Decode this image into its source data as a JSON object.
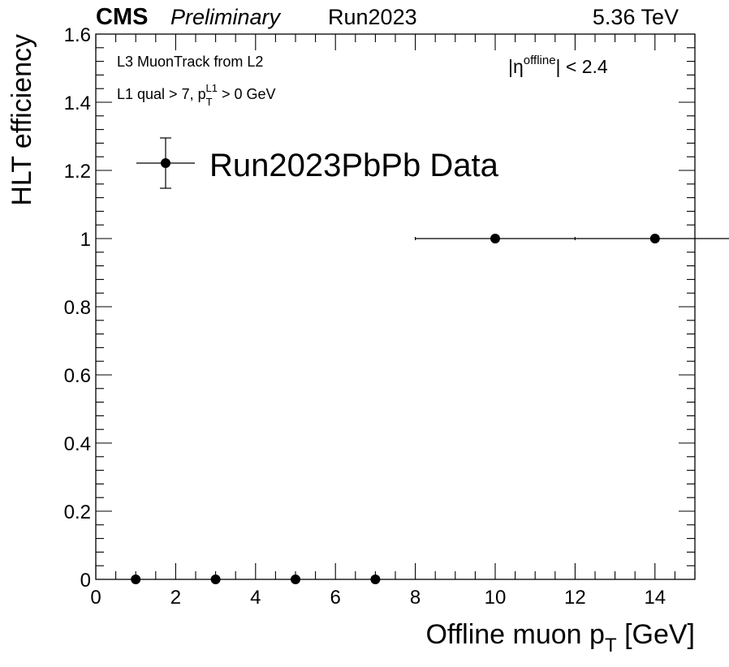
{
  "header": {
    "experiment": "CMS",
    "status": "Preliminary",
    "run": "Run2023",
    "energy": "5.36 TeV"
  },
  "annotations": {
    "line1": "L3 MuonTrack from L2",
    "line2_prefix": "L1 qual > 7, p",
    "line2_sub": "T",
    "line2_sup": "L1",
    "line2_suffix": " > 0 GeV",
    "eta_prefix": "|η",
    "eta_sup": "offline",
    "eta_suffix": "| < 2.4"
  },
  "chart_data": {
    "type": "scatter",
    "title": "",
    "xlabel_main": "Offline muon p",
    "xlabel_sub": "T",
    "xlabel_unit": " [GeV]",
    "ylabel": "HLT efficiency",
    "xlim": [
      0,
      15
    ],
    "ylim": [
      0,
      1.6
    ],
    "xticks": [
      0,
      2,
      4,
      6,
      8,
      10,
      12,
      14
    ],
    "yticks": [
      0,
      0.2,
      0.4,
      0.6,
      0.8,
      1,
      1.2,
      1.4,
      1.6
    ],
    "ytick_labels": [
      "0",
      "0.2",
      "0.4",
      "0.6",
      "0.8",
      "1",
      "1.2",
      "1.4",
      "1.6"
    ],
    "grid": false,
    "legend_position": "top-left",
    "series": [
      {
        "name": "Run2023PbPb Data",
        "color": "#000000",
        "points": [
          {
            "x": 1,
            "y": 0,
            "xerr": 1,
            "yerr": 0
          },
          {
            "x": 3,
            "y": 0,
            "xerr": 1,
            "yerr": 0
          },
          {
            "x": 5,
            "y": 0,
            "xerr": 1,
            "yerr": 0
          },
          {
            "x": 7,
            "y": 0,
            "xerr": 1,
            "yerr": 0
          },
          {
            "x": 10,
            "y": 1,
            "xerr": 2,
            "yerr": 0
          },
          {
            "x": 14,
            "y": 1,
            "xerr": 2,
            "yerr": 0
          }
        ]
      }
    ]
  }
}
